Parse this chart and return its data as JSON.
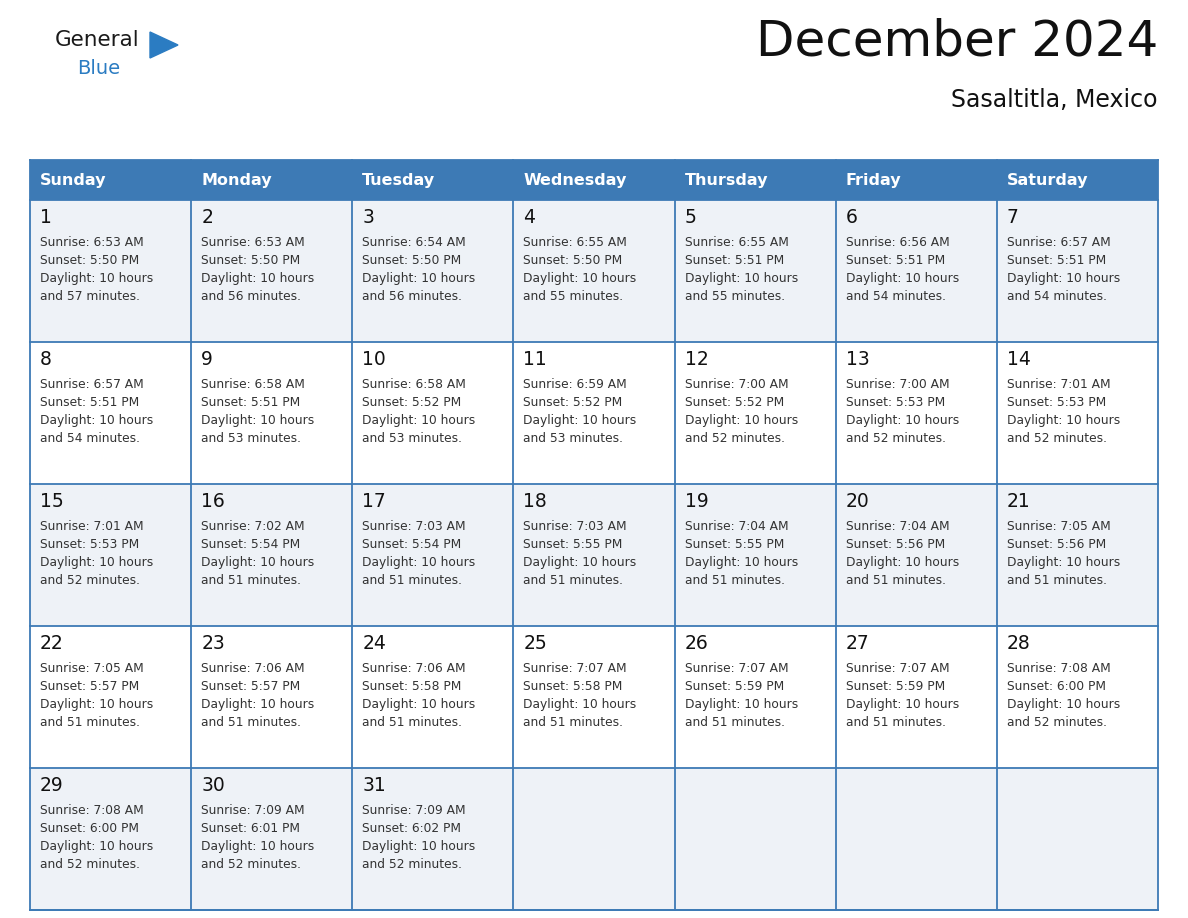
{
  "title": "December 2024",
  "subtitle": "Sasaltitla, Mexico",
  "header_bg_color": "#3d7ab5",
  "header_text_color": "#ffffff",
  "row_bg_even": "#eef2f7",
  "row_bg_odd": "#ffffff",
  "cell_border_color": "#3d7ab5",
  "day_headers": [
    "Sunday",
    "Monday",
    "Tuesday",
    "Wednesday",
    "Thursday",
    "Friday",
    "Saturday"
  ],
  "days": [
    {
      "day": 1,
      "col": 0,
      "row": 0,
      "sunrise": "6:53 AM",
      "sunset": "5:50 PM",
      "daylight_mins": "57 minutes."
    },
    {
      "day": 2,
      "col": 1,
      "row": 0,
      "sunrise": "6:53 AM",
      "sunset": "5:50 PM",
      "daylight_mins": "56 minutes."
    },
    {
      "day": 3,
      "col": 2,
      "row": 0,
      "sunrise": "6:54 AM",
      "sunset": "5:50 PM",
      "daylight_mins": "56 minutes."
    },
    {
      "day": 4,
      "col": 3,
      "row": 0,
      "sunrise": "6:55 AM",
      "sunset": "5:50 PM",
      "daylight_mins": "55 minutes."
    },
    {
      "day": 5,
      "col": 4,
      "row": 0,
      "sunrise": "6:55 AM",
      "sunset": "5:51 PM",
      "daylight_mins": "55 minutes."
    },
    {
      "day": 6,
      "col": 5,
      "row": 0,
      "sunrise": "6:56 AM",
      "sunset": "5:51 PM",
      "daylight_mins": "54 minutes."
    },
    {
      "day": 7,
      "col": 6,
      "row": 0,
      "sunrise": "6:57 AM",
      "sunset": "5:51 PM",
      "daylight_mins": "54 minutes."
    },
    {
      "day": 8,
      "col": 0,
      "row": 1,
      "sunrise": "6:57 AM",
      "sunset": "5:51 PM",
      "daylight_mins": "54 minutes."
    },
    {
      "day": 9,
      "col": 1,
      "row": 1,
      "sunrise": "6:58 AM",
      "sunset": "5:51 PM",
      "daylight_mins": "53 minutes."
    },
    {
      "day": 10,
      "col": 2,
      "row": 1,
      "sunrise": "6:58 AM",
      "sunset": "5:52 PM",
      "daylight_mins": "53 minutes."
    },
    {
      "day": 11,
      "col": 3,
      "row": 1,
      "sunrise": "6:59 AM",
      "sunset": "5:52 PM",
      "daylight_mins": "53 minutes."
    },
    {
      "day": 12,
      "col": 4,
      "row": 1,
      "sunrise": "7:00 AM",
      "sunset": "5:52 PM",
      "daylight_mins": "52 minutes."
    },
    {
      "day": 13,
      "col": 5,
      "row": 1,
      "sunrise": "7:00 AM",
      "sunset": "5:53 PM",
      "daylight_mins": "52 minutes."
    },
    {
      "day": 14,
      "col": 6,
      "row": 1,
      "sunrise": "7:01 AM",
      "sunset": "5:53 PM",
      "daylight_mins": "52 minutes."
    },
    {
      "day": 15,
      "col": 0,
      "row": 2,
      "sunrise": "7:01 AM",
      "sunset": "5:53 PM",
      "daylight_mins": "52 minutes."
    },
    {
      "day": 16,
      "col": 1,
      "row": 2,
      "sunrise": "7:02 AM",
      "sunset": "5:54 PM",
      "daylight_mins": "51 minutes."
    },
    {
      "day": 17,
      "col": 2,
      "row": 2,
      "sunrise": "7:03 AM",
      "sunset": "5:54 PM",
      "daylight_mins": "51 minutes."
    },
    {
      "day": 18,
      "col": 3,
      "row": 2,
      "sunrise": "7:03 AM",
      "sunset": "5:55 PM",
      "daylight_mins": "51 minutes."
    },
    {
      "day": 19,
      "col": 4,
      "row": 2,
      "sunrise": "7:04 AM",
      "sunset": "5:55 PM",
      "daylight_mins": "51 minutes."
    },
    {
      "day": 20,
      "col": 5,
      "row": 2,
      "sunrise": "7:04 AM",
      "sunset": "5:56 PM",
      "daylight_mins": "51 minutes."
    },
    {
      "day": 21,
      "col": 6,
      "row": 2,
      "sunrise": "7:05 AM",
      "sunset": "5:56 PM",
      "daylight_mins": "51 minutes."
    },
    {
      "day": 22,
      "col": 0,
      "row": 3,
      "sunrise": "7:05 AM",
      "sunset": "5:57 PM",
      "daylight_mins": "51 minutes."
    },
    {
      "day": 23,
      "col": 1,
      "row": 3,
      "sunrise": "7:06 AM",
      "sunset": "5:57 PM",
      "daylight_mins": "51 minutes."
    },
    {
      "day": 24,
      "col": 2,
      "row": 3,
      "sunrise": "7:06 AM",
      "sunset": "5:58 PM",
      "daylight_mins": "51 minutes."
    },
    {
      "day": 25,
      "col": 3,
      "row": 3,
      "sunrise": "7:07 AM",
      "sunset": "5:58 PM",
      "daylight_mins": "51 minutes."
    },
    {
      "day": 26,
      "col": 4,
      "row": 3,
      "sunrise": "7:07 AM",
      "sunset": "5:59 PM",
      "daylight_mins": "51 minutes."
    },
    {
      "day": 27,
      "col": 5,
      "row": 3,
      "sunrise": "7:07 AM",
      "sunset": "5:59 PM",
      "daylight_mins": "51 minutes."
    },
    {
      "day": 28,
      "col": 6,
      "row": 3,
      "sunrise": "7:08 AM",
      "sunset": "6:00 PM",
      "daylight_mins": "52 minutes."
    },
    {
      "day": 29,
      "col": 0,
      "row": 4,
      "sunrise": "7:08 AM",
      "sunset": "6:00 PM",
      "daylight_mins": "52 minutes."
    },
    {
      "day": 30,
      "col": 1,
      "row": 4,
      "sunrise": "7:09 AM",
      "sunset": "6:01 PM",
      "daylight_mins": "52 minutes."
    },
    {
      "day": 31,
      "col": 2,
      "row": 4,
      "sunrise": "7:09 AM",
      "sunset": "6:02 PM",
      "daylight_mins": "52 minutes."
    }
  ],
  "logo_color1": "#1a1a1a",
  "logo_color2": "#2b7cc2",
  "logo_triangle_color": "#2b7cc2"
}
